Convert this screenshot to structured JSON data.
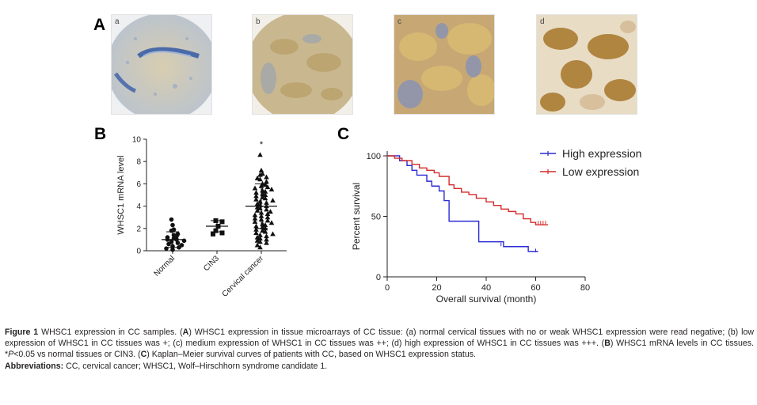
{
  "panels": {
    "a": "A",
    "b": "B",
    "c": "C"
  },
  "micrographs": [
    {
      "label": "a",
      "stain": "weak"
    },
    {
      "label": "b",
      "stain": "low"
    },
    {
      "label": "c",
      "stain": "medium"
    },
    {
      "label": "d",
      "stain": "high"
    }
  ],
  "colors": {
    "high": "#2b2bd4",
    "low": "#d42b2b",
    "hem": "#7f94c2",
    "dab": "#c39a52"
  },
  "chart_data": [
    {
      "type": "scatter",
      "panel": "B",
      "title": "",
      "ylabel": "WHSC1 mRNA level",
      "xlabel": "",
      "ylim": [
        0,
        10
      ],
      "yticks": [
        "0",
        "2",
        "4",
        "6",
        "8",
        "10"
      ],
      "categories": [
        "Normal",
        "CIN3",
        "Cervical cancer"
      ],
      "annotation": "*",
      "groups": [
        {
          "name": "Normal",
          "marker": "circle",
          "mean": 1.0,
          "sd": 0.7,
          "values": [
            2.8,
            2.3,
            1.9,
            1.8,
            1.5,
            1.4,
            1.3,
            1.2,
            1.1,
            1.0,
            1.0,
            0.9,
            0.8,
            0.7,
            0.6,
            0.5,
            0.4,
            0.3,
            0.2,
            0.1
          ]
        },
        {
          "name": "CIN3",
          "marker": "square",
          "mean": 2.2,
          "sd": 0.5,
          "values": [
            2.7,
            2.6,
            2.2,
            1.8,
            1.6,
            1.5
          ]
        },
        {
          "name": "Cervical cancer",
          "marker": "triangle",
          "mean": 4.0,
          "sd": 2.0,
          "values": [
            8.6,
            7.2,
            6.9,
            6.8,
            6.6,
            6.5,
            6.4,
            6.2,
            6.0,
            5.9,
            5.8,
            5.7,
            5.6,
            5.5,
            5.4,
            5.3,
            5.2,
            5.1,
            5.0,
            4.9,
            4.8,
            4.7,
            4.6,
            4.5,
            4.4,
            4.3,
            4.2,
            4.1,
            4.0,
            3.9,
            3.8,
            3.7,
            3.6,
            3.5,
            3.4,
            3.3,
            3.2,
            3.1,
            3.0,
            2.9,
            2.8,
            2.7,
            2.6,
            2.5,
            2.4,
            2.3,
            2.2,
            2.1,
            2.0,
            1.9,
            1.8,
            1.7,
            1.6,
            1.5,
            1.4,
            1.3,
            1.2,
            1.1,
            1.0,
            0.9,
            0.8,
            0.7,
            0.5,
            0.3
          ]
        }
      ]
    },
    {
      "type": "line",
      "panel": "C",
      "title": "",
      "xlabel": "Overall survival (month)",
      "ylabel": "Percent survival",
      "xlim": [
        0,
        80
      ],
      "ylim": [
        0,
        100
      ],
      "xticks": [
        "0",
        "20",
        "40",
        "60",
        "80"
      ],
      "yticks": [
        "0",
        "50",
        "100"
      ],
      "legend_position": "top-right",
      "series": [
        {
          "name": "High expression",
          "color": "#2b2bd4",
          "steps": [
            [
              0,
              100
            ],
            [
              5,
              96
            ],
            [
              8,
              92
            ],
            [
              10,
              88
            ],
            [
              12,
              84
            ],
            [
              16,
              79
            ],
            [
              18,
              75
            ],
            [
              21,
              71
            ],
            [
              23,
              63
            ],
            [
              25,
              46
            ],
            [
              36,
              46
            ],
            [
              37,
              29
            ],
            [
              46,
              29
            ],
            [
              47,
              25
            ],
            [
              56,
              25
            ],
            [
              57,
              21
            ],
            [
              61,
              21
            ]
          ],
          "censored": [
            [
              46,
              26
            ],
            [
              60,
              21
            ]
          ]
        },
        {
          "name": "Low expression",
          "color": "#d42b2b",
          "steps": [
            [
              0,
              100
            ],
            [
              3,
              98
            ],
            [
              6,
              96
            ],
            [
              10,
              93
            ],
            [
              13,
              90
            ],
            [
              16,
              88
            ],
            [
              19,
              86
            ],
            [
              21,
              83
            ],
            [
              25,
              76
            ],
            [
              27,
              73
            ],
            [
              30,
              70
            ],
            [
              33,
              68
            ],
            [
              36,
              65
            ],
            [
              40,
              62
            ],
            [
              43,
              59
            ],
            [
              46,
              56
            ],
            [
              49,
              54
            ],
            [
              52,
              52
            ],
            [
              55,
              48
            ],
            [
              58,
              45
            ],
            [
              60,
              43
            ],
            [
              65,
              43
            ]
          ],
          "censored": [
            [
              61,
              44
            ],
            [
              62,
              44
            ],
            [
              63,
              44
            ],
            [
              64,
              44
            ]
          ]
        }
      ]
    }
  ],
  "caption": {
    "fig": "Figure 1",
    "intro": " WHSC1 expression in CC samples. (",
    "a": "A",
    "a_text": ") WHSC1 expression in tissue microarrays of CC tissue: (a) normal cervical tissues with no or weak WHSC1 expression were read negative; (b) low expression of WHSC1 in CC tissues was +; (c) medium expression of WHSC1 in CC tissues was ++; (d) high expression of WHSC1 in CC tissues was +++. (",
    "b": "B",
    "b_text": ") WHSC1 mRNA levels in CC tissues. *",
    "p": "P",
    "b_text2": "<0.05 vs normal tissues or CIN3. (",
    "c": "C",
    "c_text": ") Kaplan–Meier survival curves of patients with CC, based on WHSC1 expression status.",
    "abbr_label": "Abbreviations:",
    "abbr_text": " CC, cervical cancer; WHSC1, Wolf–Hirschhorn syndrome candidate 1."
  }
}
